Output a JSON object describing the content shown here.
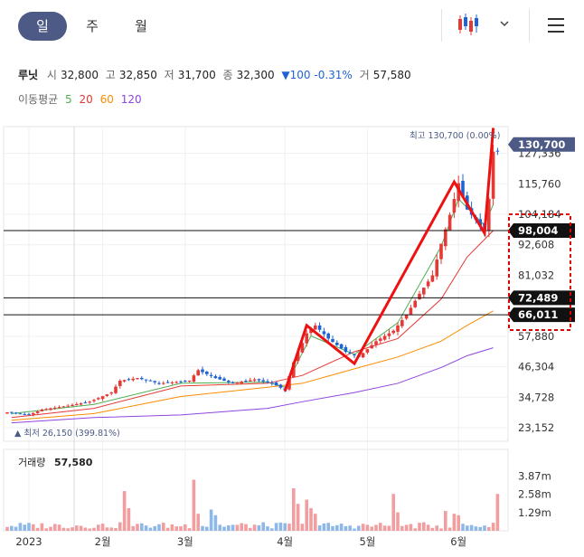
{
  "tabs": [
    {
      "label": "일",
      "active": true
    },
    {
      "label": "주",
      "active": false
    },
    {
      "label": "월",
      "active": false
    }
  ],
  "chart_type_icon": "candlestick-icon",
  "dropdown_icon": "chevron-down-icon",
  "menu_icon": "hamburger-menu-icon",
  "quote": {
    "name": "루닛",
    "open_label": "시",
    "open": "32,800",
    "high_label": "고",
    "high": "32,850",
    "low_label": "저",
    "low": "31,700",
    "close_label": "종",
    "close": "32,300",
    "change": "▼100 -0.31%",
    "volume_label": "거",
    "volume": "57,580"
  },
  "ma_legend": {
    "label": "이동평균",
    "items": [
      {
        "text": "5",
        "color": "#4caf50"
      },
      {
        "text": "20",
        "color": "#e53935"
      },
      {
        "text": "60",
        "color": "#fb8c00"
      },
      {
        "text": "120",
        "color": "#8e44e0"
      }
    ]
  },
  "annotations": {
    "high_text": "최고 130,700 (0.00%)",
    "low_text": "▲ 최저 26,150 (399.81%)",
    "price_tags": [
      {
        "text": "130,700",
        "value": 130700,
        "bg": "#4c5a85"
      },
      {
        "text": "98,004",
        "value": 98004,
        "bg": "#111111"
      },
      {
        "text": "72,489",
        "value": 72489,
        "bg": "#111111"
      },
      {
        "text": "66,011",
        "value": 66011,
        "bg": "#111111"
      }
    ],
    "hlines": [
      98004,
      72489,
      66011
    ]
  },
  "volume_panel": {
    "label": "거래량",
    "value": "57,580"
  },
  "chart_data": {
    "type": "candlestick",
    "colors": {
      "up": "#e53935",
      "down": "#1e63d4",
      "zigzag": "#ee1111"
    },
    "y_ticks": [
      127336,
      115760,
      104184,
      92608,
      81032,
      57880,
      46304,
      34728,
      23152
    ],
    "y_tick_labels": [
      "127,336",
      "115,760",
      "104,184",
      "92,608",
      "81,032",
      "57,880",
      "46,304",
      "34,728",
      "23,152"
    ],
    "ylim": [
      18000,
      137500
    ],
    "x_labels": [
      {
        "text": "2023",
        "index": 5
      },
      {
        "text": "2월",
        "index": 22
      },
      {
        "text": "3월",
        "index": 41
      },
      {
        "text": "4월",
        "index": 64
      },
      {
        "text": "5월",
        "index": 83
      },
      {
        "text": "6월",
        "index": 104
      }
    ],
    "volume_ticks": [
      3870000,
      2580000,
      1290000
    ],
    "volume_tick_labels": [
      "3.87m",
      "2.58m",
      "1.29m"
    ],
    "volume_max": 4400000,
    "anchors": [
      [
        0,
        29000
      ],
      [
        5,
        28000
      ],
      [
        8,
        30000
      ],
      [
        14,
        31500
      ],
      [
        19,
        33000
      ],
      [
        24,
        36500
      ],
      [
        26,
        41000
      ],
      [
        30,
        42000
      ],
      [
        35,
        40000
      ],
      [
        39,
        40500
      ],
      [
        42,
        41000
      ],
      [
        44,
        45000
      ],
      [
        48,
        42000
      ],
      [
        52,
        40000
      ],
      [
        57,
        41500
      ],
      [
        61,
        40000
      ],
      [
        64,
        37500
      ],
      [
        66,
        48000
      ],
      [
        69,
        59000
      ],
      [
        71,
        62000
      ],
      [
        74,
        57000
      ],
      [
        78,
        52000
      ],
      [
        81,
        50000
      ],
      [
        85,
        56000
      ],
      [
        89,
        60000
      ],
      [
        92,
        66000
      ],
      [
        95,
        74000
      ],
      [
        98,
        81000
      ],
      [
        100,
        93000
      ],
      [
        102,
        104000
      ],
      [
        104,
        116000
      ],
      [
        106,
        106000
      ],
      [
        108,
        102000
      ],
      [
        110,
        98004
      ],
      [
        111,
        110000
      ],
      [
        112,
        128000
      ]
    ],
    "ma_lines": [
      {
        "name": "5",
        "color": "#4caf50",
        "points": [
          [
            1,
            28500
          ],
          [
            20,
            32000
          ],
          [
            40,
            40000
          ],
          [
            60,
            40500
          ],
          [
            64,
            38500
          ],
          [
            70,
            58000
          ],
          [
            80,
            51000
          ],
          [
            90,
            63000
          ],
          [
            100,
            92000
          ],
          [
            104,
            110000
          ],
          [
            110,
            100000
          ],
          [
            112,
            108000
          ]
        ]
      },
      {
        "name": "20",
        "color": "#e53935",
        "points": [
          [
            1,
            27000
          ],
          [
            20,
            30500
          ],
          [
            40,
            39000
          ],
          [
            60,
            40000
          ],
          [
            68,
            43000
          ],
          [
            80,
            52000
          ],
          [
            90,
            57000
          ],
          [
            100,
            72000
          ],
          [
            106,
            88000
          ],
          [
            112,
            98000
          ]
        ]
      },
      {
        "name": "60",
        "color": "#fb8c00",
        "points": [
          [
            1,
            26000
          ],
          [
            20,
            28500
          ],
          [
            40,
            35000
          ],
          [
            60,
            38500
          ],
          [
            68,
            40000
          ],
          [
            80,
            45500
          ],
          [
            90,
            50000
          ],
          [
            100,
            56000
          ],
          [
            106,
            62000
          ],
          [
            112,
            67500
          ]
        ]
      },
      {
        "name": "120",
        "color": "#8e44e0",
        "points": [
          [
            1,
            25000
          ],
          [
            20,
            27000
          ],
          [
            40,
            28000
          ],
          [
            60,
            30500
          ],
          [
            68,
            33000
          ],
          [
            80,
            36500
          ],
          [
            90,
            40000
          ],
          [
            100,
            46000
          ],
          [
            106,
            50500
          ],
          [
            112,
            53500
          ]
        ]
      }
    ],
    "zigzag": [
      [
        64,
        37000
      ],
      [
        69,
        62000
      ],
      [
        80,
        47500
      ],
      [
        103,
        116500
      ],
      [
        110,
        97000
      ],
      [
        112,
        137000
      ]
    ]
  }
}
